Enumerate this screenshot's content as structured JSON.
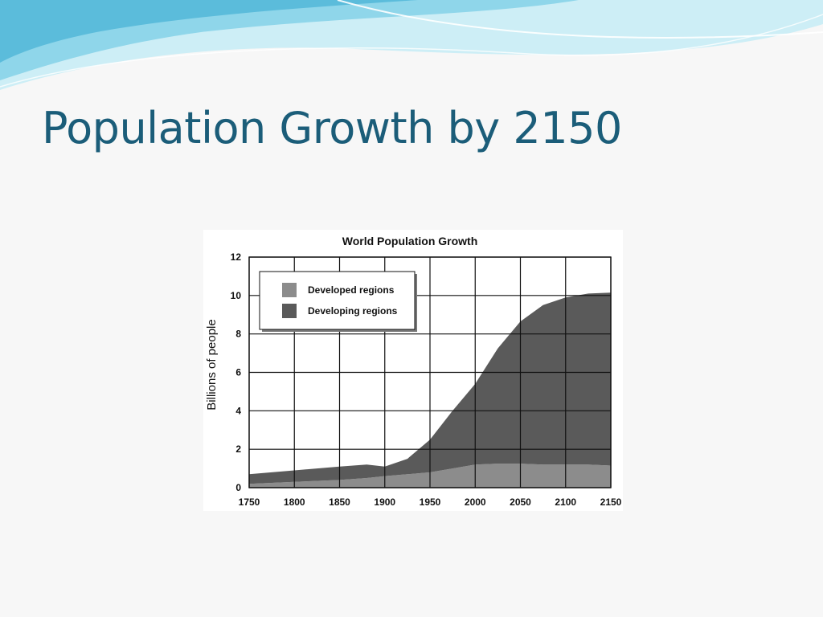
{
  "slide": {
    "title": "Population Growth by 2150"
  },
  "colors": {
    "title": "#1b5d79",
    "wave_light": "#bfe8f2",
    "wave_mid": "#7fd0e6",
    "wave_dark": "#4fb6d6",
    "developed": "#8c8c8c",
    "developing": "#5a5a5a"
  },
  "chart_data": {
    "type": "area",
    "stacked": true,
    "title": "World Population Growth",
    "xlabel": "",
    "ylabel": "Billions of people",
    "xlim": [
      1750,
      2150
    ],
    "ylim": [
      0,
      12
    ],
    "x_ticks": [
      "1750",
      "1800",
      "1850",
      "1900",
      "1950",
      "2000",
      "2050",
      "2100",
      "2150"
    ],
    "y_ticks": [
      "0",
      "2",
      "4",
      "6",
      "8",
      "10",
      "12"
    ],
    "grid": true,
    "legend_position": "top-left",
    "x": [
      1750,
      1800,
      1850,
      1880,
      1900,
      1925,
      1950,
      1975,
      2000,
      2025,
      2050,
      2075,
      2100,
      2125,
      2150
    ],
    "series": [
      {
        "name": "Developed regions",
        "color": "#8c8c8c",
        "values": [
          0.2,
          0.3,
          0.4,
          0.5,
          0.6,
          0.7,
          0.8,
          1.0,
          1.2,
          1.25,
          1.25,
          1.2,
          1.2,
          1.2,
          1.15
        ]
      },
      {
        "name": "Developing regions",
        "color": "#5a5a5a",
        "values": [
          0.5,
          0.6,
          0.7,
          0.7,
          0.5,
          0.8,
          1.7,
          3.0,
          4.2,
          6.0,
          7.4,
          8.3,
          8.7,
          8.9,
          9.0
        ]
      }
    ]
  }
}
